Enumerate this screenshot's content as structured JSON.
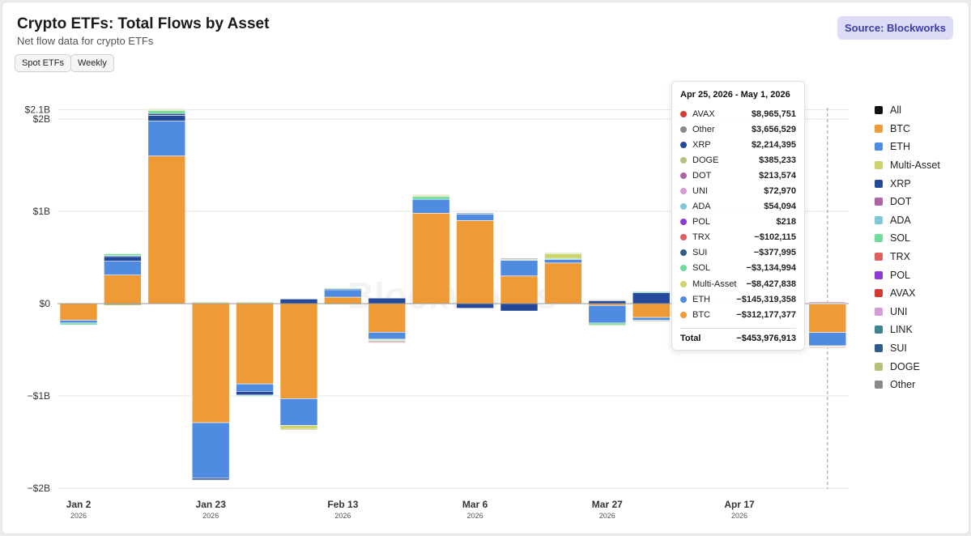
{
  "header": {
    "title": "Crypto ETFs: Total Flows by Asset",
    "subtitle": "Net flow data for crypto ETFs",
    "filters": [
      "Spot ETFs",
      "Weekly"
    ],
    "source_label": "Source: Blockworks"
  },
  "watermark": "Blockworks",
  "chart_data": {
    "type": "bar",
    "stacked": true,
    "title": "Crypto ETFs: Total Flows by Asset",
    "subtitle": "Net flow data for crypto ETFs",
    "y_ticks": [
      {
        "value": 2100000000,
        "label": "$2.1B"
      },
      {
        "value": 2000000000,
        "label": "$2B"
      },
      {
        "value": 1000000000,
        "label": "$1B"
      },
      {
        "value": 0,
        "label": "$0"
      },
      {
        "value": -1000000000,
        "label": "−$1B"
      },
      {
        "value": -2000000000,
        "label": "−$2B"
      }
    ],
    "ylim": [
      -2000000000,
      2100000000
    ],
    "x_ticks": [
      {
        "week_index": 0,
        "label": "Jan 2",
        "year": "2026"
      },
      {
        "week_index": 3,
        "label": "Jan 23",
        "year": "2026"
      },
      {
        "week_index": 6,
        "label": "Feb 13",
        "year": "2026"
      },
      {
        "week_index": 9,
        "label": "Mar 6",
        "year": "2026"
      },
      {
        "week_index": 12,
        "label": "Mar 27",
        "year": "2026"
      },
      {
        "week_index": 15,
        "label": "Apr 17",
        "year": "2026"
      }
    ],
    "weeks": 18,
    "highlighted_week": 17,
    "colors": {
      "BTC": "#ee9b37",
      "ETH": "#4f8be0",
      "XRP": "#24489a",
      "SOL": "#6fdc9c",
      "SUI": "#2f5a8a",
      "Multi-Asset": "#cfd46a",
      "DOGE": "#b7c07c",
      "Other": "#8a8a8a",
      "TRX": "#e05f5f",
      "AVAX": "#d63a32"
    },
    "series": [
      {
        "name": "BTC",
        "values": [
          -180000000,
          310000000,
          1600000000,
          -1290000000,
          -870000000,
          -1030000000,
          70000000,
          -310000000,
          980000000,
          900000000,
          300000000,
          440000000,
          -20000000,
          -150000000,
          0,
          0,
          0,
          -312177377
        ]
      },
      {
        "name": "ETH",
        "values": [
          -30000000,
          150000000,
          380000000,
          -600000000,
          -80000000,
          -290000000,
          80000000,
          -70000000,
          150000000,
          70000000,
          170000000,
          40000000,
          -190000000,
          -30000000,
          0,
          0,
          0,
          -145319358
        ]
      },
      {
        "name": "XRP",
        "values": [
          0,
          50000000,
          60000000,
          -20000000,
          -40000000,
          50000000,
          10000000,
          60000000,
          0,
          -50000000,
          -80000000,
          0,
          30000000,
          120000000,
          0,
          0,
          0,
          2214395
        ]
      },
      {
        "name": "SUI",
        "values": [
          0,
          10000000,
          20000000,
          0,
          -5000000,
          0,
          0,
          -10000000,
          0,
          10000000,
          0,
          0,
          0,
          0,
          0,
          0,
          0,
          -377995
        ]
      },
      {
        "name": "SOL",
        "values": [
          -20000000,
          20000000,
          30000000,
          0,
          -10000000,
          0,
          10000000,
          -10000000,
          30000000,
          0,
          0,
          10000000,
          -20000000,
          10000000,
          0,
          0,
          0,
          -3134994
        ]
      },
      {
        "name": "Multi-Asset",
        "values": [
          0,
          0,
          10000000,
          10000000,
          10000000,
          -40000000,
          0,
          -5000000,
          10000000,
          0,
          0,
          50000000,
          0,
          0,
          0,
          0,
          0,
          -8427838
        ]
      },
      {
        "name": "DOGE",
        "values": [
          0,
          -20000000,
          10000000,
          10000000,
          10000000,
          -10000000,
          -10000000,
          0,
          10000000,
          0,
          10000000,
          10000000,
          -10000000,
          0,
          0,
          0,
          0,
          385233
        ]
      },
      {
        "name": "Other",
        "values": [
          0,
          0,
          0,
          0,
          0,
          0,
          0,
          -10000000,
          0,
          0,
          10000000,
          0,
          10000000,
          -10000000,
          0,
          0,
          0,
          3656529
        ]
      },
      {
        "name": "TRX",
        "values": [
          0,
          0,
          0,
          0,
          0,
          0,
          0,
          -10000000,
          0,
          0,
          0,
          0,
          0,
          0,
          0,
          0,
          0,
          -102115
        ]
      },
      {
        "name": "AVAX",
        "values": [
          0,
          0,
          0,
          0,
          0,
          0,
          0,
          0,
          0,
          0,
          0,
          0,
          0,
          0,
          0,
          0,
          0,
          8965751
        ]
      }
    ]
  },
  "legend": [
    {
      "name": "All",
      "color": "#111111"
    },
    {
      "name": "BTC",
      "color": "#ee9b37"
    },
    {
      "name": "ETH",
      "color": "#4f8be0"
    },
    {
      "name": "Multi-Asset",
      "color": "#cfd46a"
    },
    {
      "name": "XRP",
      "color": "#24489a"
    },
    {
      "name": "DOT",
      "color": "#b064a8"
    },
    {
      "name": "ADA",
      "color": "#7ec8dc"
    },
    {
      "name": "SOL",
      "color": "#6fdc9c"
    },
    {
      "name": "TRX",
      "color": "#e05f5f"
    },
    {
      "name": "POL",
      "color": "#8a3bd6"
    },
    {
      "name": "AVAX",
      "color": "#d63a32"
    },
    {
      "name": "UNI",
      "color": "#d59ad8"
    },
    {
      "name": "LINK",
      "color": "#3e8490"
    },
    {
      "name": "SUI",
      "color": "#2f5a8a"
    },
    {
      "name": "DOGE",
      "color": "#b7c07c"
    },
    {
      "name": "Other",
      "color": "#8a8a8a"
    }
  ],
  "tooltip": {
    "title": "Apr 25, 2026 - May 1, 2026",
    "rows": [
      {
        "name": "AVAX",
        "value": "$8,965,751",
        "color": "#d63a32"
      },
      {
        "name": "Other",
        "value": "$3,656,529",
        "color": "#8a8a8a"
      },
      {
        "name": "XRP",
        "value": "$2,214,395",
        "color": "#24489a"
      },
      {
        "name": "DOGE",
        "value": "$385,233",
        "color": "#b7c07c"
      },
      {
        "name": "DOT",
        "value": "$213,574",
        "color": "#b064a8"
      },
      {
        "name": "UNI",
        "value": "$72,970",
        "color": "#d59ad8"
      },
      {
        "name": "ADA",
        "value": "$54,094",
        "color": "#7ec8dc"
      },
      {
        "name": "POL",
        "value": "$218",
        "color": "#8a3bd6"
      },
      {
        "name": "TRX",
        "value": "−$102,115",
        "color": "#e05f5f"
      },
      {
        "name": "SUI",
        "value": "−$377,995",
        "color": "#2f5a8a"
      },
      {
        "name": "SOL",
        "value": "−$3,134,994",
        "color": "#6fdc9c"
      },
      {
        "name": "Multi-Asset",
        "value": "−$8,427,838",
        "color": "#cfd46a"
      },
      {
        "name": "ETH",
        "value": "−$145,319,358",
        "color": "#4f8be0"
      },
      {
        "name": "BTC",
        "value": "−$312,177,377",
        "color": "#ee9b37"
      }
    ],
    "total_label": "Total",
    "total_value": "−$453,976,913"
  }
}
